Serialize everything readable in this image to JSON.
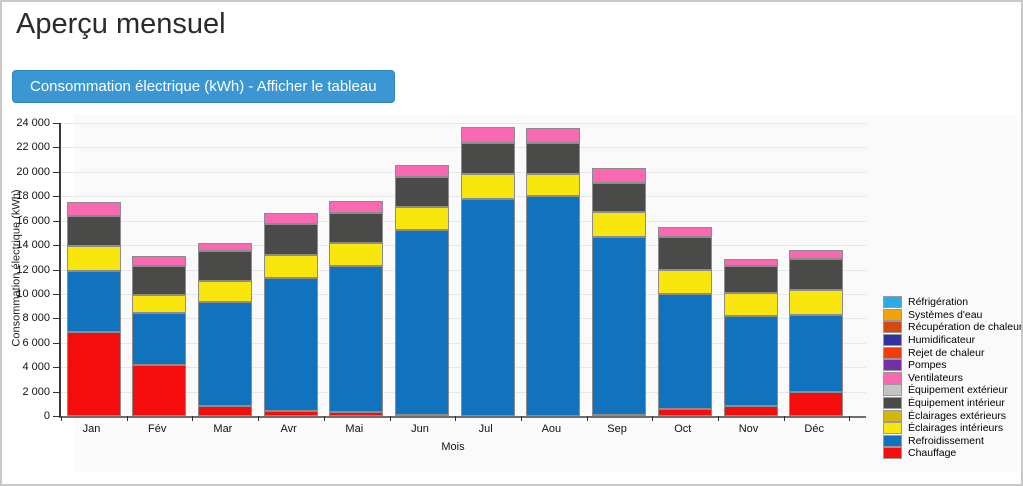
{
  "header": {
    "title": "Aperçu mensuel"
  },
  "toolbar": {
    "button_label": "Consommation électrique (kWh) - Afficher le tableau",
    "button_color": "#3a97d4"
  },
  "chart_data": {
    "type": "bar",
    "stacked": true,
    "title": "",
    "xlabel": "Mois",
    "ylabel": "Consommation électrique (kWh)",
    "ylim": [
      0,
      24000
    ],
    "y_tick_step": 2000,
    "y_ticks": [
      "0",
      "2 000",
      "4 000",
      "6 000",
      "8 000",
      "10 000",
      "12 000",
      "14 000",
      "16 000",
      "18 000",
      "20 000",
      "22 000",
      "24 000"
    ],
    "grid": "horizontal",
    "legend_position": "right",
    "categories": [
      "Jan",
      "Fév",
      "Mar",
      "Avr",
      "Mai",
      "Jun",
      "Jul",
      "Aou",
      "Sep",
      "Oct",
      "Nov",
      "Déc"
    ],
    "series": [
      {
        "name": "Chauffage",
        "color": "#f50d0d",
        "values": [
          6900,
          4200,
          800,
          400,
          300,
          100,
          0,
          0,
          100,
          600,
          800,
          2000
        ]
      },
      {
        "name": "Refroidissement",
        "color": "#1173bd",
        "values": [
          5000,
          4200,
          8500,
          10900,
          12000,
          15100,
          17800,
          18000,
          14600,
          9400,
          7400,
          6300
        ]
      },
      {
        "name": "Éclairages intérieurs",
        "color": "#f8e60c",
        "values": [
          2000,
          1500,
          1800,
          1900,
          1900,
          1900,
          2000,
          1800,
          2000,
          2000,
          1900,
          2000
        ]
      },
      {
        "name": "Éclairages extérieurs",
        "color": "#d1b70e",
        "values": [
          0,
          0,
          0,
          0,
          0,
          0,
          0,
          0,
          0,
          0,
          0,
          0
        ]
      },
      {
        "name": "Équipement intérieur",
        "color": "#4a4a48",
        "values": [
          2500,
          2400,
          2400,
          2500,
          2400,
          2500,
          2600,
          2600,
          2400,
          2700,
          2200,
          2600
        ]
      },
      {
        "name": "Équipement extérieur",
        "color": "#c4c4c4",
        "values": [
          0,
          0,
          0,
          0,
          0,
          0,
          0,
          0,
          0,
          0,
          0,
          0
        ]
      },
      {
        "name": "Ventilateurs",
        "color": "#f969b2",
        "values": [
          1100,
          800,
          700,
          900,
          1000,
          1000,
          1300,
          1200,
          1200,
          800,
          600,
          700
        ]
      },
      {
        "name": "Pompes",
        "color": "#7330a5",
        "values": [
          0,
          0,
          0,
          0,
          0,
          0,
          0,
          0,
          0,
          0,
          0,
          0
        ]
      },
      {
        "name": "Rejet de chaleur",
        "color": "#f43c0a",
        "values": [
          0,
          0,
          0,
          0,
          0,
          0,
          0,
          0,
          0,
          0,
          0,
          0
        ]
      },
      {
        "name": "Humidificateur",
        "color": "#31329f",
        "values": [
          0,
          0,
          0,
          0,
          0,
          0,
          0,
          0,
          0,
          0,
          0,
          0
        ]
      },
      {
        "name": "Récupération de chaleur",
        "color": "#d4490f",
        "values": [
          0,
          0,
          0,
          0,
          0,
          0,
          0,
          0,
          0,
          0,
          0,
          0
        ]
      },
      {
        "name": "Systèmes d'eau",
        "color": "#f2a30c",
        "values": [
          0,
          0,
          0,
          0,
          0,
          0,
          0,
          0,
          0,
          0,
          0,
          0
        ]
      },
      {
        "name": "Réfrigération",
        "color": "#2aabe3",
        "values": [
          0,
          0,
          0,
          0,
          0,
          0,
          0,
          0,
          0,
          0,
          0,
          0
        ]
      }
    ]
  }
}
